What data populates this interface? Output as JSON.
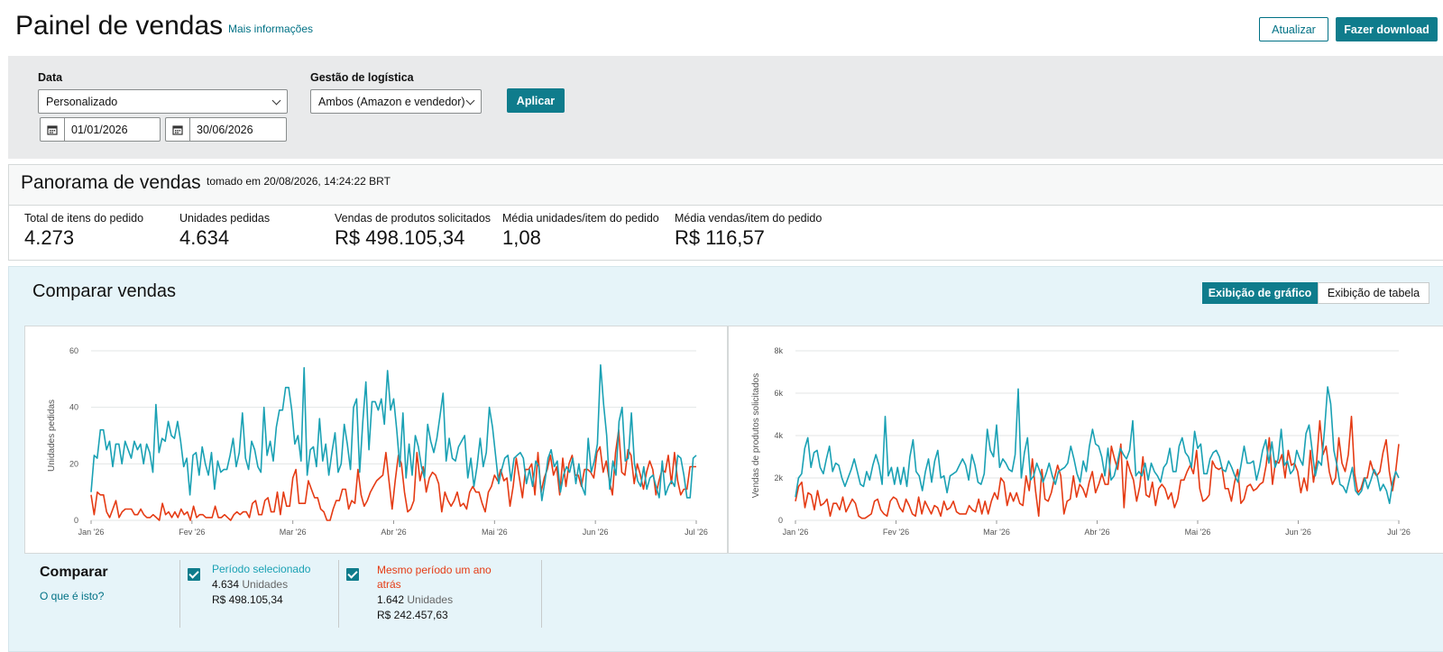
{
  "header": {
    "title": "Painel de vendas",
    "more_info": "Mais informações",
    "refresh_label": "Atualizar",
    "download_label": "Fazer download"
  },
  "filters": {
    "date_label": "Data",
    "date_select": "Personalizado",
    "start_date": "01/01/2026",
    "end_date": "30/06/2026",
    "logistics_label": "Gestão de logística",
    "logistics_select": "Ambos (Amazon e vendedor)",
    "apply_label": "Aplicar"
  },
  "overview": {
    "title": "Panorama de vendas",
    "timestamp": "tomado em 20/08/2026, 14:24:22 BRT",
    "metrics": [
      {
        "label": "Total de itens do pedido",
        "value": "4.273"
      },
      {
        "label": "Unidades pedidas",
        "value": "4.634"
      },
      {
        "label": "Vendas de produtos solicitados",
        "value": "R$ 498.105,34"
      },
      {
        "label": "Média unidades/item do pedido",
        "value": "1,08"
      },
      {
        "label": "Média vendas/item do pedido",
        "value": "R$ 116,57"
      }
    ]
  },
  "compare": {
    "title": "Comparar vendas",
    "chart_view_label": "Exibição de gráfico",
    "table_view_label": "Exibição de tabela",
    "compare_label": "Comparar",
    "what_is_this": "O que é isto?",
    "legend": [
      {
        "name": "Período selecionado",
        "units": "4.634",
        "units_label": "Unidades",
        "sales": "R$ 498.105,34",
        "color": "#1aa1b4"
      },
      {
        "name": "Mesmo período um ano atrás",
        "units": "1.642",
        "units_label": "Unidades",
        "sales": "R$ 242.457,63",
        "color": "#e53b14"
      }
    ]
  },
  "chart_data": [
    {
      "type": "line",
      "ylabel": "Unidades pedidas",
      "ylim": [
        0,
        60
      ],
      "yticks": [
        "0",
        "20",
        "40",
        "60"
      ],
      "xticks": [
        "Jan '26",
        "Fev '26",
        "Mar '26",
        "Abr '26",
        "Mai '26",
        "Jun '26",
        "Jul '26"
      ],
      "series": [
        {
          "name": "Período selecionado",
          "color": "#1aa1b4",
          "values": [
            10,
            23,
            22,
            32,
            32,
            25,
            28,
            19,
            27,
            27,
            20,
            28,
            25,
            22,
            28,
            25,
            27,
            20,
            27,
            24,
            17,
            41,
            24,
            29,
            28,
            35,
            30,
            29,
            35,
            28,
            19,
            22,
            9,
            23,
            24,
            16,
            26,
            20,
            16,
            24,
            11,
            21,
            17,
            18,
            18,
            23,
            29,
            19,
            24,
            38,
            22,
            18,
            28,
            25,
            19,
            17,
            40,
            23,
            28,
            21,
            33,
            39,
            39,
            47,
            47,
            39,
            27,
            30,
            21,
            54,
            16,
            25,
            26,
            19,
            36,
            21,
            27,
            16,
            24,
            31,
            17,
            20,
            34,
            27,
            18,
            40,
            43,
            17,
            35,
            49,
            25,
            42,
            42,
            39,
            43,
            34,
            53,
            39,
            43,
            32,
            19,
            38,
            15,
            27,
            16,
            30,
            26,
            19,
            15,
            34,
            28,
            24,
            29,
            37,
            45,
            21,
            29,
            22,
            21,
            26,
            28,
            30,
            15,
            22,
            12,
            19,
            29,
            19,
            24,
            40,
            33,
            23,
            13,
            18,
            22,
            23,
            14,
            22,
            23,
            24,
            22,
            13,
            18,
            12,
            21,
            19,
            7,
            14,
            22,
            25,
            19,
            21,
            10,
            16,
            19,
            17,
            22,
            13,
            20,
            12,
            9,
            29,
            17,
            21,
            27,
            55,
            41,
            30,
            11,
            21,
            16,
            35,
            40,
            21,
            22,
            38,
            20,
            14,
            12,
            19,
            11,
            15,
            16,
            12,
            8,
            21,
            9,
            12,
            14,
            12,
            23,
            22,
            16,
            8,
            8,
            22,
            23
          ]
        },
        {
          "name": "Mesmo período um ano atrás",
          "color": "#e53b14",
          "values": [
            9,
            2,
            10,
            9,
            9,
            3,
            1,
            4,
            7,
            1,
            3,
            4,
            4,
            4,
            2,
            2,
            4,
            2,
            1,
            1,
            2,
            1,
            0,
            6,
            2,
            3,
            1,
            3,
            1,
            4,
            2,
            3,
            0,
            5,
            1,
            2,
            2,
            1,
            1,
            1,
            5,
            1,
            1,
            2,
            1,
            0,
            2,
            3,
            2,
            3,
            3,
            1,
            6,
            7,
            2,
            2,
            7,
            8,
            3,
            3,
            10,
            2,
            10,
            5,
            5,
            15,
            18,
            6,
            6,
            6,
            14,
            11,
            8,
            8,
            4,
            3,
            0,
            0,
            4,
            7,
            7,
            11,
            11,
            4,
            7,
            6,
            18,
            9,
            5,
            7,
            10,
            12,
            14,
            15,
            16,
            24,
            14,
            4,
            14,
            23,
            20,
            10,
            3,
            4,
            7,
            24,
            14,
            19,
            10,
            15,
            17,
            16,
            13,
            3,
            10,
            7,
            5,
            7,
            10,
            5,
            6,
            4,
            10,
            12,
            10,
            10,
            6,
            3,
            10,
            12,
            16,
            14,
            18,
            14,
            15,
            5,
            12,
            22,
            15,
            8,
            18,
            18,
            20,
            9,
            24,
            10,
            15,
            18,
            23,
            16,
            19,
            9,
            22,
            12,
            20,
            23,
            16,
            16,
            12,
            18,
            18,
            17,
            15,
            24,
            26,
            17,
            21,
            14,
            9,
            24,
            32,
            17,
            16,
            25,
            23,
            13,
            20,
            16,
            11,
            17,
            21,
            18,
            9,
            14,
            18,
            17,
            23,
            13,
            24,
            14,
            9,
            11,
            11,
            19,
            19,
            19
          ]
        }
      ]
    },
    {
      "type": "line",
      "ylabel": "Vendas de produtos solicitados",
      "ylim": [
        0,
        8000
      ],
      "yticks": [
        "0",
        "2k",
        "4k",
        "6k",
        "8k"
      ],
      "xticks": [
        "Jan '26",
        "Fev '26",
        "Mar '26",
        "Abr '26",
        "Mai '26",
        "Jun '26",
        "Jul '26"
      ],
      "series": [
        {
          "name": "Período selecionado",
          "color": "#1aa1b4",
          "values": [
            1100,
            2000,
            2200,
            3400,
            3900,
            2500,
            3200,
            3300,
            2500,
            2200,
            2900,
            3500,
            2300,
            2700,
            2600,
            2000,
            1600,
            2000,
            2400,
            2900,
            2300,
            1700,
            1600,
            2300,
            1900,
            2600,
            3100,
            2600,
            1700,
            4900,
            2100,
            2500,
            1700,
            2500,
            1700,
            2500,
            1600,
            3000,
            3800,
            2300,
            2100,
            1400,
            2300,
            2900,
            1800,
            2800,
            3300,
            2000,
            2100,
            1300,
            2100,
            2200,
            2300,
            2600,
            2900,
            2600,
            1900,
            3100,
            2600,
            1800,
            1700,
            2200,
            4300,
            3300,
            3000,
            4500,
            2500,
            2900,
            2700,
            2400,
            2300,
            3100,
            6200,
            2000,
            3200,
            3900,
            1900,
            2100,
            2700,
            2300,
            1800,
            2200,
            2700,
            2100,
            1700,
            2300,
            2400,
            2500,
            2700,
            3500,
            2900,
            2200,
            1800,
            2800,
            2300,
            3500,
            4300,
            3600,
            3500,
            3000,
            2100,
            3400,
            1900,
            2100,
            2700,
            3400,
            3100,
            2900,
            3300,
            4700,
            2100,
            2300,
            2100,
            2700,
            1900,
            2700,
            2300,
            2100,
            1800,
            2500,
            2700,
            3400,
            2300,
            2300,
            3500,
            3900,
            3200,
            3000,
            2500,
            4200,
            3400,
            3600,
            2200,
            2200,
            2900,
            3200,
            3300,
            3000,
            2400,
            2300,
            2800,
            2500,
            2100,
            1800,
            2600,
            3500,
            2700,
            2700,
            2800,
            1900,
            2500,
            3300,
            3800,
            2700,
            3700,
            2500,
            2900,
            4300,
            2600,
            2800,
            2200,
            2400,
            3300,
            2900,
            2600,
            4100,
            4500,
            3300,
            2100,
            2800,
            2600,
            4300,
            6300,
            5500,
            3300,
            2600,
            1700,
            1600,
            1300,
            1900,
            2500,
            1400,
            1200,
            1400,
            2000,
            1500,
            1900,
            2400,
            2100,
            1400,
            1700,
            1400,
            800,
            1800,
            2300,
            2000
          ]
        },
        {
          "name": "Mesmo período um ano atrás",
          "color": "#e53b14",
          "values": [
            900,
            1600,
            1800,
            600,
            1300,
            1200,
            500,
            1400,
            700,
            800,
            1000,
            200,
            800,
            800,
            500,
            1100,
            400,
            700,
            1000,
            800,
            200,
            100,
            100,
            200,
            300,
            900,
            1000,
            500,
            300,
            200,
            900,
            1100,
            1000,
            600,
            400,
            1000,
            700,
            300,
            200,
            1100,
            300,
            900,
            600,
            300,
            700,
            600,
            200,
            900,
            500,
            600,
            900,
            400,
            300,
            300,
            300,
            700,
            500,
            400,
            1000,
            300,
            900,
            300,
            900,
            1300,
            1000,
            2000,
            1800,
            700,
            1300,
            900,
            1300,
            800,
            700,
            2100,
            1400,
            2900,
            1400,
            200,
            2400,
            1000,
            900,
            1300,
            2000,
            2600,
            2100,
            300,
            900,
            1000,
            2100,
            1100,
            1700,
            1500,
            1100,
            1800,
            2300,
            1300,
            1700,
            2200,
            1700,
            1700,
            3500,
            2900,
            2400,
            3600,
            600,
            2800,
            2300,
            1900,
            900,
            1600,
            3000,
            1200,
            1100,
            1800,
            700,
            1500,
            1700,
            1500,
            1000,
            1300,
            600,
            1000,
            1900,
            1900,
            2300,
            2600,
            2200,
            3300,
            1500,
            900,
            1000,
            1200,
            2800,
            2500,
            2400,
            2500,
            1500,
            1500,
            900,
            1800,
            2400,
            800,
            1000,
            1600,
            1700,
            1400,
            1500,
            1700,
            1800,
            2600,
            3900,
            1700,
            2800,
            2700,
            3100,
            2000,
            3300,
            2600,
            2700,
            2300,
            1300,
            2000,
            1400,
            3300,
            1800,
            2800,
            4700,
            3100,
            3500,
            2300,
            1700,
            2000,
            3900,
            2700,
            2300,
            3100,
            4900,
            2200,
            1300,
            1500,
            2000,
            2000,
            2800,
            2300,
            2100,
            2300,
            3200,
            3800,
            2300,
            1400,
            2300,
            3600
          ]
        }
      ]
    }
  ]
}
